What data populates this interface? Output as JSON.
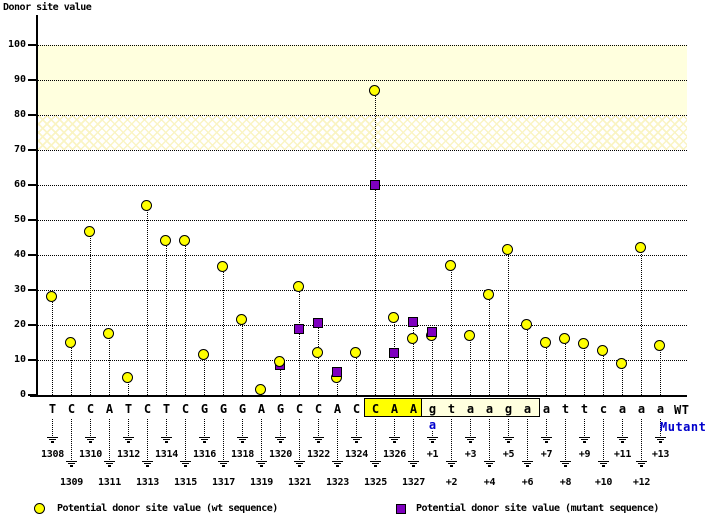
{
  "title": "Donor site value",
  "labels": {
    "wt": "WT",
    "mutant": "Mutant"
  },
  "legend": {
    "wt": "Potential donor site value (wt sequence)",
    "mutant": "Potential donor site value (mutant sequence)"
  },
  "colors": {
    "wt_marker": "#ffff00",
    "mutant_marker": "#7f00bf",
    "solid_band": "#ffffde",
    "mutant_text": "#0000cc",
    "exon_highlight": "#ffff00",
    "intron_highlight": "#ffffde"
  },
  "chart_data": {
    "type": "scatter",
    "title": "Donor site value",
    "ylabel": "Donor site value",
    "xlabel": "",
    "ylim": [
      0,
      105
    ],
    "yticks": [
      0,
      10,
      20,
      30,
      40,
      50,
      60,
      70,
      80,
      90,
      100
    ],
    "grid": "dotted-horizontal",
    "legend_position": "bottom",
    "threshold_bands": [
      {
        "from": 80,
        "to": 100,
        "style": "solid"
      },
      {
        "from": 70,
        "to": 80,
        "style": "hatched"
      }
    ],
    "series": [
      {
        "name": "Potential donor site value (wt sequence)",
        "marker": "circle",
        "color": "#ffff00"
      },
      {
        "name": "Potential donor site value (mutant sequence)",
        "marker": "square",
        "color": "#7f00bf"
      }
    ],
    "positions": [
      {
        "label": "1308",
        "base": "T",
        "wt": 28
      },
      {
        "label": "1309",
        "base": "C",
        "wt": 15
      },
      {
        "label": "1310",
        "base": "C",
        "wt": 46.5
      },
      {
        "label": "1311",
        "base": "A",
        "wt": 17.5
      },
      {
        "label": "1312",
        "base": "T",
        "wt": 5
      },
      {
        "label": "1313",
        "base": "C",
        "wt": 54
      },
      {
        "label": "1314",
        "base": "T",
        "wt": 44
      },
      {
        "label": "1315",
        "base": "C",
        "wt": 44
      },
      {
        "label": "1316",
        "base": "G",
        "wt": 11.5
      },
      {
        "label": "1317",
        "base": "G",
        "wt": 36.5
      },
      {
        "label": "1318",
        "base": "G",
        "wt": 21.5
      },
      {
        "label": "1319",
        "base": "A",
        "wt": 1.5
      },
      {
        "label": "1320",
        "base": "G",
        "wt": 9.5,
        "mut": 8.5
      },
      {
        "label": "1321",
        "base": "C",
        "wt": 31,
        "mut": 19
      },
      {
        "label": "1322",
        "base": "C",
        "wt": 12,
        "mut": 20.5
      },
      {
        "label": "1323",
        "base": "A",
        "wt": 5,
        "mut": 6.5
      },
      {
        "label": "1324",
        "base": "C",
        "wt": 12
      },
      {
        "label": "1325",
        "base": "C",
        "wt": 87,
        "mut": 60
      },
      {
        "label": "1326",
        "base": "A",
        "wt": 22,
        "mut": 12
      },
      {
        "label": "1327",
        "base": "A",
        "wt": 16,
        "mut": 21
      },
      {
        "label": "+1",
        "base": "g",
        "wt": 17,
        "mut": 18,
        "mutant_base": "a"
      },
      {
        "label": "+2",
        "base": "t",
        "wt": 37
      },
      {
        "label": "+3",
        "base": "a",
        "wt": 17
      },
      {
        "label": "+4",
        "base": "a",
        "wt": 28.5
      },
      {
        "label": "+5",
        "base": "g",
        "wt": 41.5
      },
      {
        "label": "+6",
        "base": "a",
        "wt": 20
      },
      {
        "label": "+7",
        "base": "a",
        "wt": 15
      },
      {
        "label": "+8",
        "base": "t",
        "wt": 16
      },
      {
        "label": "+9",
        "base": "t",
        "wt": 14.5
      },
      {
        "label": "+10",
        "base": "c",
        "wt": 12.5
      },
      {
        "label": "+11",
        "base": "a",
        "wt": 9
      },
      {
        "label": "+12",
        "base": "a",
        "wt": 42
      },
      {
        "label": "+13",
        "base": "a",
        "wt": 14
      }
    ],
    "highlight_boxes": [
      {
        "bases": "CAA",
        "from": "1325",
        "to": "1327",
        "style": "exon-yellow",
        "start_index": 17,
        "end_index": 19
      },
      {
        "bases": "gtaaga",
        "from": "+1",
        "to": "+6",
        "style": "intron-cream",
        "start_index": 20,
        "end_index": 25
      }
    ],
    "mutation": {
      "position": "+1",
      "wt_base": "g",
      "mutant_base": "a"
    }
  }
}
